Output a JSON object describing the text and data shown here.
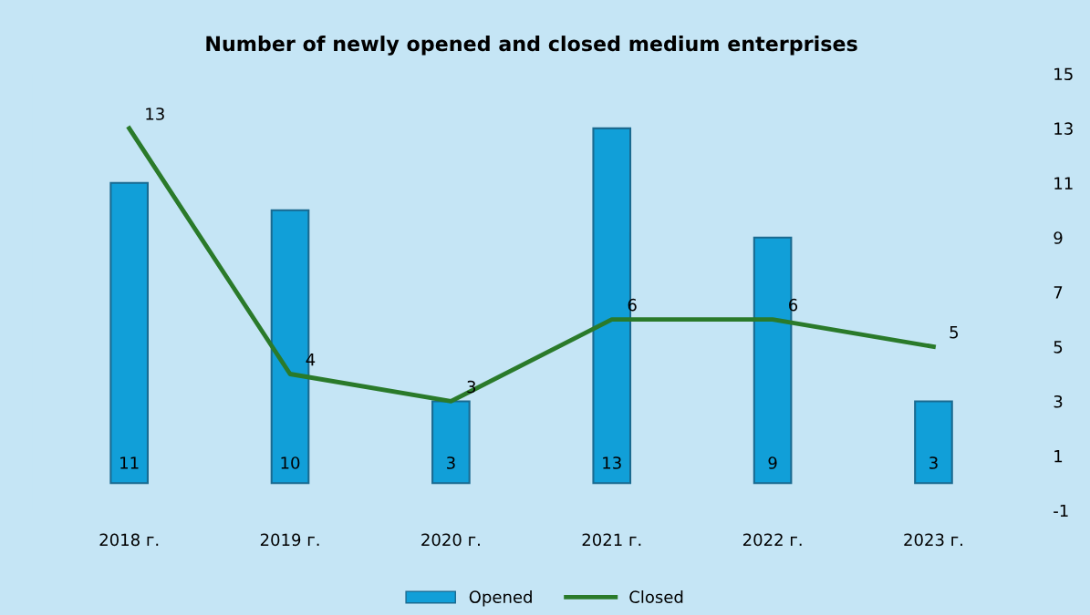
{
  "chart_data": {
    "type": "bar",
    "title": "Number of newly opened and closed medium enterprises",
    "categories": [
      "2018 г.",
      "2019 г.",
      "2020 г.",
      "2021 г.",
      "2022 г.",
      "2023 г."
    ],
    "series": [
      {
        "name": "Opened",
        "color": "#119fd8",
        "values": [
          11,
          10,
          3,
          13,
          9,
          3
        ]
      },
      {
        "name": "Closed",
        "type": "line",
        "color": "#2a7a2a",
        "values": [
          13,
          4,
          3,
          6,
          6,
          5
        ]
      }
    ],
    "ylim": [
      -1,
      15
    ],
    "yticks": [
      -1,
      1,
      3,
      5,
      7,
      9,
      11,
      13,
      15
    ],
    "grid": false,
    "legend": "bottom",
    "data_labels": true,
    "marker": "none",
    "line_style": "solid"
  }
}
